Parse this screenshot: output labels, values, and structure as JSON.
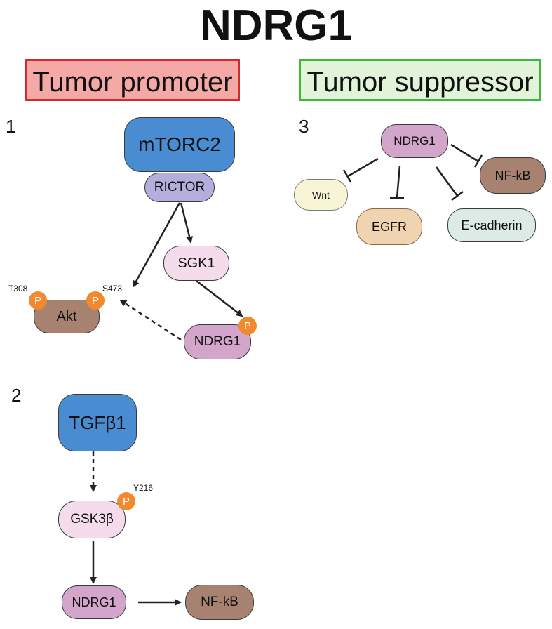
{
  "title": "NDRG1",
  "promoter_label": "Tumor promoter",
  "suppressor_label": "Tumor suppressor",
  "panel_numbers": [
    "1",
    "2",
    "3"
  ],
  "phospho_label": "P",
  "panel1": {
    "mtorc2": "mTORC2",
    "rictor": "RICTOR",
    "sgk1": "SGK1",
    "akt": "Akt",
    "ndrg1": "NDRG1",
    "akt_site_left": "T308",
    "akt_site_right": "S473"
  },
  "panel2": {
    "tgfb1": "TGFβ1",
    "gsk3b": "GSK3β",
    "gsk3b_site": "Y216",
    "ndrg1": "NDRG1",
    "nfkb": "NF-kB"
  },
  "panel3": {
    "ndrg1": "NDRG1",
    "wnt": "Wnt",
    "egfr": "EGFR",
    "ecadherin": "E-cadherin",
    "nfkb": "NF-kB"
  },
  "colors": {
    "mtorc2": "#4a8cd1",
    "rictor": "#b3aedb",
    "light_pink": "#f4dcec",
    "mauve": "#d3a5cb",
    "brown": "#a88270",
    "tgfb1": "#4a8cd1",
    "wnt": "#f8f4d6",
    "egfr": "#f0d3b0",
    "ecadherin": "#dcebe6",
    "phospho": "#f08a2c"
  }
}
